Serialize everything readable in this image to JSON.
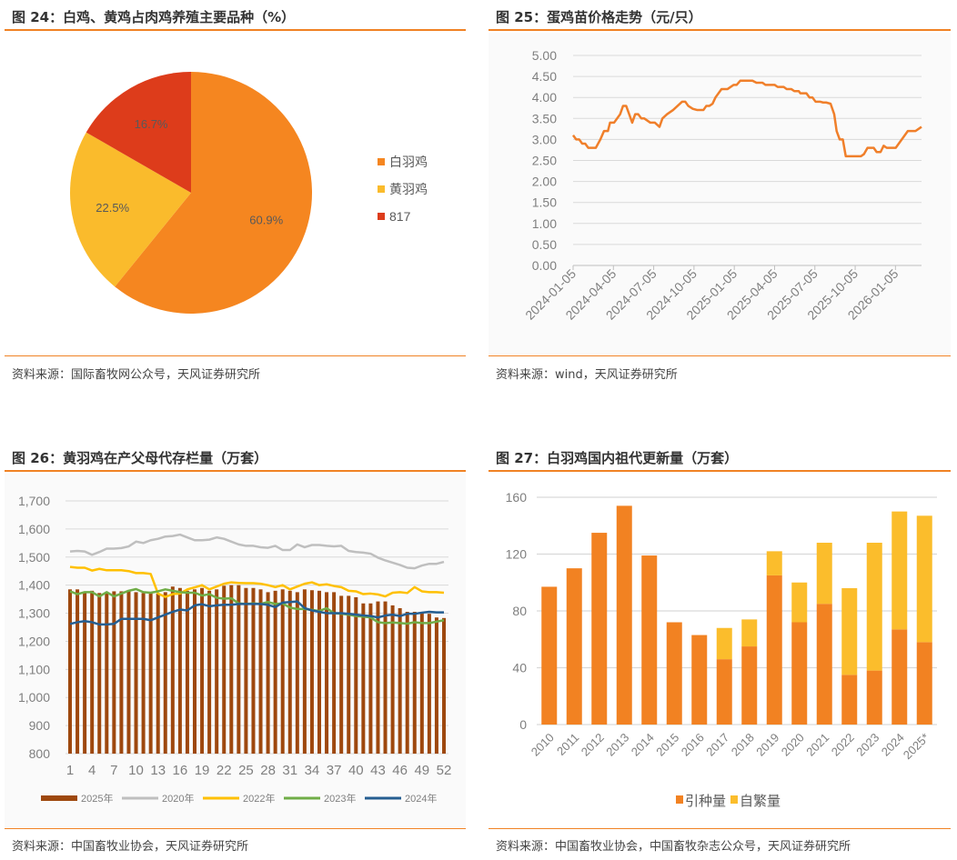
{
  "figures": [
    {
      "title": "图 24：白鸡、黄鸡占肉鸡养殖主要品种（%）",
      "source": "资料来源：国际畜牧网公众号，天风证券研究所"
    },
    {
      "title": "图 25：蛋鸡苗价格走势（元/只）",
      "source": "资料来源：wind，天风证券研究所"
    },
    {
      "title": "图 26：黄羽鸡在产父母代存栏量（万套）",
      "source": "资料来源：中国畜牧业协会，天风证券研究所"
    },
    {
      "title": "图 27：白羽鸡国内祖代更新量（万套）",
      "source": "资料来源：中国畜牧业协会，中国畜牧杂志公众号，天风证券研究所"
    }
  ],
  "chart_data": [
    {
      "type": "pie",
      "title": "白鸡、黄鸡占肉鸡养殖主要品种（%）",
      "legend_position": "right",
      "slices": [
        {
          "label": "白羽鸡",
          "value": 60.9,
          "data_label": "60.9%",
          "color": "#F58620"
        },
        {
          "label": "黄羽鸡",
          "value": 22.5,
          "data_label": "22.5%",
          "color": "#FABB2C"
        },
        {
          "label": "817",
          "value": 16.7,
          "data_label": "16.7%",
          "color": "#DD3C1B"
        }
      ]
    },
    {
      "type": "line",
      "title": "蛋鸡苗价格走势（元/只）",
      "x_unit": "months since 2024-01-05",
      "x_tick_labels": [
        "2024-01-05",
        "2024-04-05",
        "2024-07-05",
        "2024-10-05",
        "2025-01-05",
        "2025-04-05",
        "2025-07-05",
        "2025-10-05",
        "2026-01-05"
      ],
      "x_tick_values": [
        0,
        3,
        6,
        9,
        12,
        15,
        18,
        21,
        24
      ],
      "xlim": [
        0,
        25.94
      ],
      "ylim": [
        0,
        5
      ],
      "y_tick_labels": [
        "0.00",
        "0.50",
        "1.00",
        "1.50",
        "2.00",
        "2.50",
        "3.00",
        "3.50",
        "4.00",
        "4.50",
        "5.00"
      ],
      "grid": true,
      "color": "#F07F2A",
      "x": [
        0,
        0.23,
        0.45,
        0.68,
        0.9,
        1.13,
        1.69,
        2.03,
        2.3,
        2.59,
        2.75,
        3.05,
        3.5,
        3.72,
        3.95,
        4.4,
        4.62,
        4.85,
        5.08,
        5.3,
        5.75,
        6.09,
        6.43,
        6.65,
        6.99,
        7.44,
        7.78,
        8.12,
        8.35,
        8.57,
        8.91,
        9.25,
        9.7,
        9.92,
        10.15,
        10.38,
        10.6,
        11.05,
        11.5,
        11.95,
        12.18,
        12.45,
        13.35,
        13.65,
        14.1,
        14.32,
        15.0,
        15.23,
        15.68,
        15.9,
        16.24,
        16.47,
        16.8,
        16.92,
        17.37,
        17.6,
        17.82,
        18.05,
        18.38,
        18.61,
        18.84,
        19.17,
        19.44,
        19.62,
        19.85,
        20.08,
        20.3,
        21.43,
        21.65,
        21.92,
        22.38,
        22.6,
        22.89,
        23.12,
        23.35,
        24.02,
        24.47,
        24.92,
        25.49,
        25.94
      ],
      "y": [
        3.1,
        3.0,
        3.0,
        2.9,
        2.9,
        2.8,
        2.8,
        3.0,
        3.2,
        3.2,
        3.4,
        3.4,
        3.6,
        3.8,
        3.8,
        3.4,
        3.6,
        3.6,
        3.5,
        3.5,
        3.4,
        3.4,
        3.3,
        3.5,
        3.6,
        3.7,
        3.8,
        3.9,
        3.9,
        3.8,
        3.73,
        3.7,
        3.7,
        3.8,
        3.8,
        3.85,
        4.0,
        4.2,
        4.2,
        4.3,
        4.3,
        4.4,
        4.4,
        4.35,
        4.35,
        4.3,
        4.3,
        4.25,
        4.25,
        4.2,
        4.2,
        4.15,
        4.15,
        4.1,
        4.1,
        4.0,
        4.0,
        3.9,
        3.9,
        3.88,
        3.88,
        3.85,
        3.6,
        3.2,
        3.0,
        3.0,
        2.6,
        2.6,
        2.65,
        2.8,
        2.8,
        2.7,
        2.7,
        2.85,
        2.8,
        2.8,
        3.0,
        3.2,
        3.2,
        3.3
      ]
    },
    {
      "type": "bar+line",
      "title": "黄羽鸡在产父母代存栏量（万套）",
      "ylim": [
        800,
        1700
      ],
      "y_tick_labels": [
        "800",
        "900",
        "1,000",
        "1,100",
        "1,200",
        "1,300",
        "1,400",
        "1,500",
        "1,600",
        "1,700"
      ],
      "x_tick_labels": [
        "1",
        "4",
        "7",
        "10",
        "13",
        "16",
        "19",
        "22",
        "25",
        "28",
        "31",
        "34",
        "37",
        "40",
        "43",
        "46",
        "49",
        "52"
      ],
      "x_weeks": 52,
      "grid": true,
      "legend_position": "bottom",
      "series": [
        {
          "name": "2025年",
          "kind": "bar",
          "color": "#9E480E",
          "values": [
            1385,
            1385,
            1375,
            1380,
            1372,
            1372,
            1378,
            1378,
            1380,
            1375,
            1372,
            1375,
            1370,
            1375,
            1395,
            1390,
            1380,
            1385,
            1390,
            1380,
            1385,
            1398,
            1400,
            1400,
            1390,
            1390,
            1385,
            1375,
            1380,
            1385,
            1380,
            1375,
            1385,
            1382,
            1380,
            1375,
            1375,
            1362,
            1362,
            1357,
            1335,
            1335,
            1342,
            1342,
            1328,
            1318,
            1305,
            1305,
            1300,
            1298,
            1285,
            1283
          ]
        },
        {
          "name": "2020年",
          "kind": "line",
          "color": "#BFBFBF",
          "values": [
            1520,
            1522,
            1520,
            1508,
            1518,
            1530,
            1530,
            1532,
            1538,
            1555,
            1550,
            1560,
            1565,
            1573,
            1575,
            1580,
            1570,
            1560,
            1560,
            1562,
            1570,
            1565,
            1555,
            1545,
            1540,
            1540,
            1535,
            1533,
            1540,
            1525,
            1525,
            1545,
            1535,
            1543,
            1543,
            1540,
            1538,
            1540,
            1522,
            1518,
            1516,
            1512,
            1498,
            1488,
            1480,
            1472,
            1462,
            1460,
            1470,
            1476,
            1476,
            1483
          ]
        },
        {
          "name": "2022年",
          "kind": "line",
          "color": "#FFC000",
          "values": [
            1465,
            1462,
            1462,
            1452,
            1458,
            1453,
            1453,
            1453,
            1450,
            1443,
            1443,
            1440,
            1370,
            1358,
            1368,
            1370,
            1385,
            1392,
            1400,
            1385,
            1395,
            1405,
            1410,
            1408,
            1407,
            1407,
            1405,
            1400,
            1393,
            1400,
            1385,
            1395,
            1405,
            1410,
            1400,
            1403,
            1397,
            1393,
            1380,
            1378,
            1368,
            1370,
            1367,
            1360,
            1373,
            1375,
            1372,
            1393,
            1378,
            1375,
            1375,
            1373
          ]
        },
        {
          "name": "2023年",
          "kind": "line",
          "color": "#70AD47",
          "values": [
            1378,
            1368,
            1375,
            1375,
            1360,
            1375,
            1360,
            1370,
            1380,
            1386,
            1375,
            1373,
            1378,
            1385,
            1380,
            1375,
            1373,
            1373,
            1363,
            1368,
            1355,
            1352,
            1353,
            1335,
            1333,
            1335,
            1333,
            1340,
            1333,
            1335,
            1320,
            1315,
            1315,
            1312,
            1308,
            1318,
            1300,
            1298,
            1295,
            1290,
            1288,
            1285,
            1268,
            1265,
            1267,
            1265,
            1263,
            1268,
            1265,
            1265,
            1270,
            1275
          ]
        },
        {
          "name": "2024年",
          "kind": "line",
          "color": "#255E91",
          "values": [
            1262,
            1268,
            1272,
            1268,
            1260,
            1260,
            1262,
            1280,
            1280,
            1280,
            1280,
            1275,
            1285,
            1295,
            1305,
            1313,
            1310,
            1328,
            1332,
            1325,
            1328,
            1330,
            1330,
            1333,
            1333,
            1333,
            1333,
            1330,
            1322,
            1338,
            1340,
            1342,
            1318,
            1310,
            1305,
            1300,
            1300,
            1300,
            1298,
            1295,
            1292,
            1290,
            1285,
            1292,
            1295,
            1290,
            1298,
            1298,
            1302,
            1305,
            1303,
            1303
          ]
        }
      ]
    },
    {
      "type": "stacked-bar",
      "title": "白羽鸡国内祖代更新量（万套）",
      "categories": [
        "2010",
        "2011",
        "2012",
        "2013",
        "2014",
        "2015",
        "2016",
        "2017",
        "2018",
        "2019",
        "2020",
        "2021",
        "2022",
        "2023",
        "2024",
        "2025*"
      ],
      "ylim": [
        0,
        160
      ],
      "y_tick_labels": [
        "0",
        "40",
        "80",
        "120",
        "160"
      ],
      "grid": true,
      "legend_position": "bottom",
      "series": [
        {
          "name": "引种量",
          "color": "#F28222",
          "values": [
            97,
            110,
            135,
            154,
            119,
            72,
            63,
            46,
            55,
            105,
            72,
            85,
            35,
            38,
            67,
            58
          ]
        },
        {
          "name": "自繁量",
          "color": "#FBBD2C",
          "values": [
            0,
            0,
            0,
            0,
            0,
            0,
            0,
            22,
            19,
            17,
            28,
            43,
            61,
            90,
            83,
            89
          ]
        }
      ]
    }
  ]
}
